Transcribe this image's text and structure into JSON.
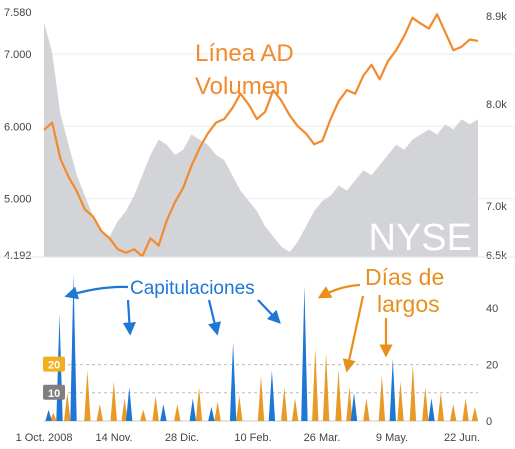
{
  "chart_data": [
    {
      "type": "line",
      "x_ticks": [
        "1 Oct. 2008",
        "14 Nov.",
        "28 Dic.",
        "10 Feb.",
        "26 Mar.",
        "9 May.",
        "22 Jun."
      ],
      "left_axis": {
        "ticks": [
          "7.580",
          "7.000",
          "6.000",
          "5.000",
          "4.192"
        ],
        "range": [
          4.192,
          7.58
        ]
      },
      "right_axis": {
        "ticks": [
          "8.9k",
          "8.0k",
          "7.0k",
          "6.5k"
        ],
        "range": [
          6.5,
          8.9
        ]
      },
      "series": [
        {
          "name": "Línea AD Volumen",
          "color": "#F28A2E",
          "values": [
            5.95,
            6.05,
            5.55,
            5.3,
            5.1,
            4.85,
            4.75,
            4.55,
            4.45,
            4.3,
            4.25,
            4.3,
            4.2,
            4.45,
            4.35,
            4.7,
            4.95,
            5.15,
            5.45,
            5.7,
            5.9,
            6.05,
            6.1,
            6.25,
            6.45,
            6.3,
            6.1,
            6.2,
            6.5,
            6.35,
            6.15,
            6.0,
            5.9,
            5.75,
            5.8,
            6.1,
            6.35,
            6.5,
            6.45,
            6.7,
            6.85,
            6.65,
            6.9,
            7.05,
            7.25,
            7.5,
            7.42,
            7.35,
            7.55,
            7.3,
            7.05,
            7.1,
            7.2,
            7.18
          ]
        },
        {
          "name": "NYSE",
          "color": "#D2D4D7",
          "values": [
            8.8,
            8.5,
            7.9,
            7.6,
            7.3,
            7.1,
            6.9,
            6.75,
            6.7,
            6.85,
            6.95,
            7.1,
            7.3,
            7.5,
            7.65,
            7.6,
            7.5,
            7.55,
            7.7,
            7.65,
            7.6,
            7.5,
            7.45,
            7.3,
            7.15,
            7.05,
            6.95,
            6.8,
            6.7,
            6.6,
            6.55,
            6.65,
            6.8,
            6.95,
            7.05,
            7.1,
            7.2,
            7.15,
            7.25,
            7.35,
            7.3,
            7.4,
            7.5,
            7.6,
            7.55,
            7.65,
            7.7,
            7.75,
            7.7,
            7.8,
            7.75,
            7.85,
            7.8,
            7.85
          ]
        }
      ],
      "watermark": "NYSE",
      "title": "Línea AD Volumen"
    },
    {
      "type": "bar",
      "y_ticks": [
        "40",
        "20",
        "0"
      ],
      "ylim": [
        0,
        50
      ],
      "badges": [
        "20",
        "10"
      ],
      "series": [
        {
          "name": "Capitulaciones",
          "color": "#1F77D4",
          "spikes": [
            [
              3,
              4
            ],
            [
              10,
              38
            ],
            [
              19,
              52
            ],
            [
              55,
              12
            ],
            [
              77,
              6
            ],
            [
              96,
              8
            ],
            [
              108,
              5
            ],
            [
              122,
              28
            ],
            [
              147,
              18
            ],
            [
              168,
              48
            ],
            [
              200,
              10
            ],
            [
              225,
              22
            ],
            [
              250,
              8
            ]
          ]
        },
        {
          "name": "Días de largos",
          "color": "#E89A27",
          "spikes": [
            [
              6,
              3
            ],
            [
              15,
              10
            ],
            [
              28,
              18
            ],
            [
              36,
              6
            ],
            [
              45,
              14
            ],
            [
              52,
              8
            ],
            [
              64,
              4
            ],
            [
              72,
              9
            ],
            [
              86,
              6
            ],
            [
              100,
              12
            ],
            [
              112,
              7
            ],
            [
              126,
              9
            ],
            [
              140,
              16
            ],
            [
              155,
              12
            ],
            [
              162,
              8
            ],
            [
              175,
              26
            ],
            [
              182,
              24
            ],
            [
              190,
              18
            ],
            [
              197,
              12
            ],
            [
              208,
              8
            ],
            [
              218,
              16
            ],
            [
              230,
              14
            ],
            [
              238,
              20
            ],
            [
              246,
              12
            ],
            [
              256,
              10
            ],
            [
              264,
              6
            ],
            [
              272,
              8
            ],
            [
              278,
              5
            ]
          ]
        }
      ],
      "annotations": [
        {
          "text": "Capitulaciones",
          "color": "#1F77D4"
        },
        {
          "text": "Días de",
          "color": "#E8901E"
        },
        {
          "text": "largos",
          "color": "#E8901E"
        }
      ]
    }
  ]
}
